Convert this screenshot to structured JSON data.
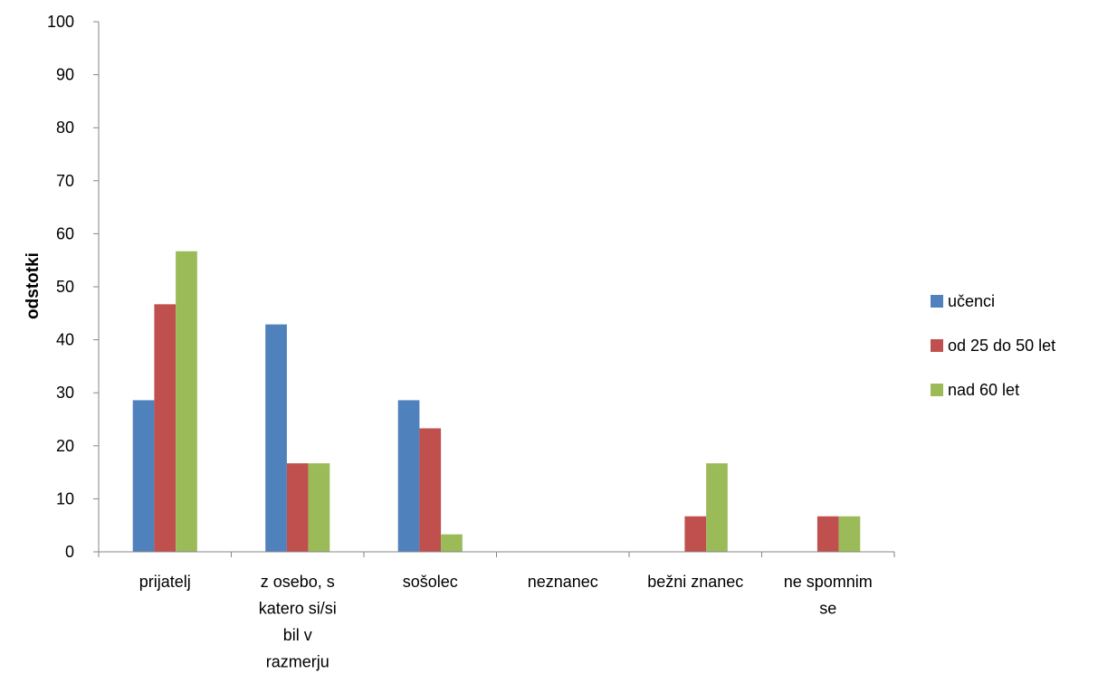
{
  "chart_data": {
    "type": "bar",
    "title": "",
    "xlabel": "",
    "ylabel": "odstotki",
    "ylim": [
      0,
      100
    ],
    "yticks": [
      0,
      10,
      20,
      30,
      40,
      50,
      60,
      70,
      80,
      90,
      100
    ],
    "grid": false,
    "legend_position": "right",
    "categories": [
      "prijatelj",
      "z osebo, s katero si/si bil v razmerju",
      "sošolec",
      "neznanec",
      "bežni znanec",
      "ne spomnim se"
    ],
    "category_label_lines": [
      [
        "prijatelj"
      ],
      [
        "z osebo, s",
        "katero si/si",
        "bil v",
        "razmerju"
      ],
      [
        "sošolec"
      ],
      [
        "neznanec"
      ],
      [
        "bežni znanec"
      ],
      [
        "ne spomnim",
        "se"
      ]
    ],
    "series": [
      {
        "name": "učenci",
        "color": "#4F81BD",
        "values": [
          28.6,
          42.9,
          28.6,
          0,
          0,
          0
        ]
      },
      {
        "name": "od 25 do 50 let",
        "color": "#C0504D",
        "values": [
          46.7,
          16.7,
          23.3,
          0,
          6.7,
          6.7
        ]
      },
      {
        "name": "nad 60 let",
        "color": "#9BBB59",
        "values": [
          56.7,
          16.7,
          3.3,
          0,
          16.7,
          6.7
        ]
      }
    ]
  }
}
